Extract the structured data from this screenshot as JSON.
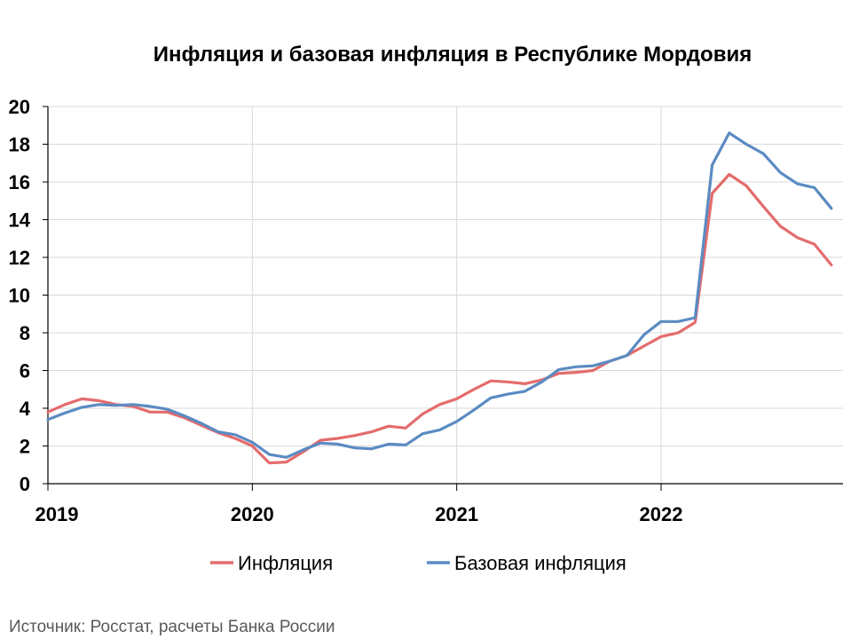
{
  "chart_data": {
    "type": "line",
    "title": "Инфляция и базовая инфляция в Республике Мордовия",
    "source": "Источник: Росстат, расчеты Банка России",
    "x_start": "2019-01",
    "x_ticks": [
      "2019",
      "2020",
      "2021",
      "2022"
    ],
    "ylim": [
      0,
      20
    ],
    "y_ticks": [
      0,
      2,
      4,
      6,
      8,
      10,
      12,
      14,
      16,
      18,
      20
    ],
    "grid": true,
    "legend": "bottom",
    "series": [
      {
        "name": "Инфляция",
        "color": "#e46c6c",
        "values": [
          3.8,
          4.2,
          4.5,
          4.4,
          4.2,
          4.1,
          3.8,
          3.8,
          3.5,
          3.1,
          2.7,
          2.4,
          2.0,
          1.1,
          1.15,
          1.7,
          2.3,
          2.4,
          2.55,
          2.75,
          3.05,
          2.95,
          3.7,
          4.2,
          4.5,
          5.0,
          5.45,
          5.4,
          5.3,
          5.5,
          5.85,
          5.9,
          6.0,
          6.5,
          6.8,
          7.3,
          7.8,
          8.0,
          8.55,
          15.4,
          16.4,
          15.8,
          14.7,
          13.65,
          13.05,
          12.7,
          11.6
        ]
      },
      {
        "name": "Базовая инфляция",
        "color": "#5b8bc2",
        "values": [
          3.4,
          3.75,
          4.05,
          4.2,
          4.15,
          4.2,
          4.1,
          3.95,
          3.6,
          3.2,
          2.75,
          2.6,
          2.2,
          1.55,
          1.4,
          1.8,
          2.15,
          2.1,
          1.9,
          1.85,
          2.1,
          2.05,
          2.65,
          2.85,
          3.3,
          3.9,
          4.55,
          4.75,
          4.9,
          5.4,
          6.05,
          6.2,
          6.25,
          6.5,
          6.8,
          7.9,
          8.6,
          8.6,
          8.8,
          16.9,
          18.6,
          18.0,
          17.5,
          16.5,
          15.9,
          15.7,
          14.6
        ]
      }
    ]
  }
}
